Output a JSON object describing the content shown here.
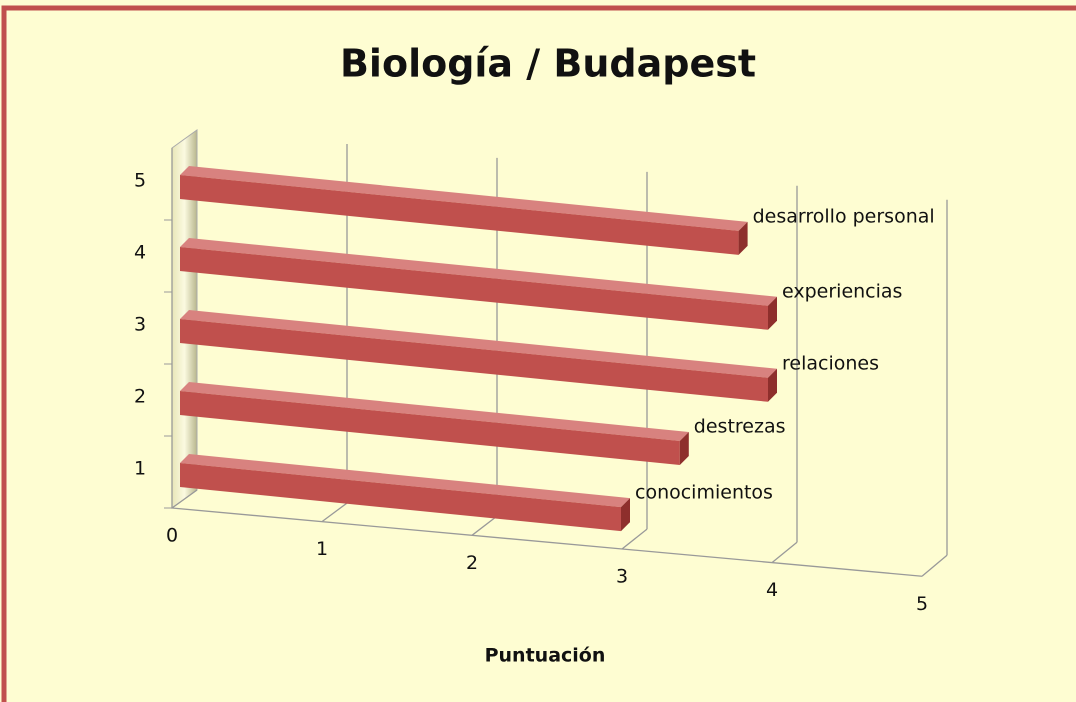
{
  "chart_data": {
    "type": "bar3d_horizontal",
    "title": "Biología / Budapest",
    "x_label": "Puntuación",
    "categories": [
      "1",
      "2",
      "3",
      "4",
      "5"
    ],
    "values": [
      3.0,
      3.4,
      4.0,
      4.0,
      3.8
    ],
    "point_labels": [
      "conocimientos",
      "destrezas",
      "relaciones",
      "experiencias",
      "desarrollo personal"
    ],
    "color": "#c0504d",
    "xlim": [
      0,
      5
    ],
    "xticks": [
      0,
      1,
      2,
      3,
      4,
      5
    ],
    "grid": true
  }
}
